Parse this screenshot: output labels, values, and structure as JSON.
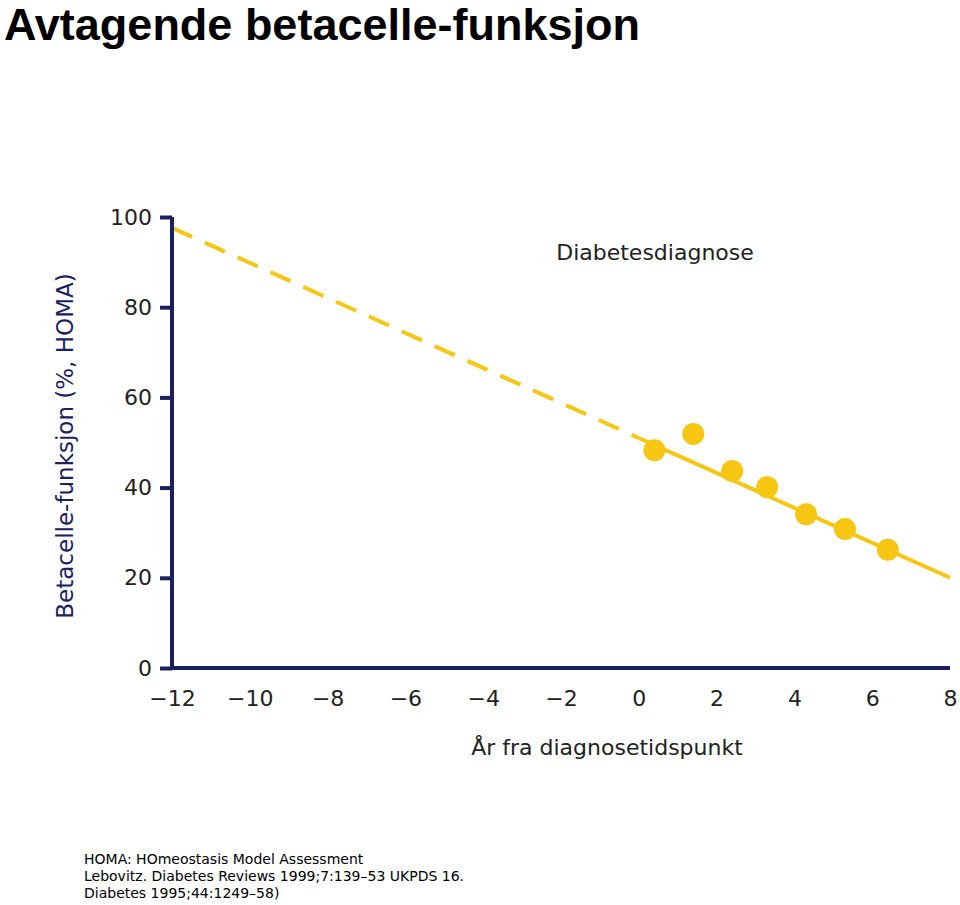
{
  "chart_data": {
    "type": "scatter",
    "title": "Avtagende betacelle-funksjon",
    "x_label": "År fra diagnosetidspunkt",
    "y_label": "Betacelle-funksjon (%, HOMA)",
    "annotations": [
      "Diabetesdiagnose"
    ],
    "notes": [
      "HOMA: HOmeostasis Model Assessment",
      "Lebovitz. Diabetes Reviews 1999;7:139–53 UKPDS 16.",
      "Diabetes 1995;44:1249–58)"
    ],
    "xlim": [
      -12,
      8
    ],
    "ylim": [
      0,
      100
    ],
    "xticks": [
      {
        "value": -12,
        "label": "−12"
      },
      {
        "value": -10,
        "label": "−10"
      },
      {
        "value": -8,
        "label": "−8"
      },
      {
        "value": -6,
        "label": "−6"
      },
      {
        "value": -4,
        "label": "−4"
      },
      {
        "value": -2,
        "label": "−2"
      },
      0,
      2,
      4,
      6,
      8
    ],
    "yticks": [
      0,
      20,
      40,
      60,
      80,
      100
    ],
    "grid": false,
    "series": [
      {
        "type": "scatter",
        "marker": "circle",
        "color": "#f6c612",
        "x": [
          0.4,
          1.4,
          2.4,
          3.3,
          4.3,
          5.3,
          6.4
        ],
        "values": [
          48.3,
          51.9,
          43.7,
          40.1,
          34.1,
          30.8,
          26.2
        ]
      },
      {
        "type": "line",
        "line_style": "dashed",
        "color": "#f6c612",
        "x": [
          -12,
          0
        ],
        "values": [
          97.6,
          51
        ]
      },
      {
        "type": "line",
        "line_style": "solid",
        "color": "#f6c612",
        "x": [
          0,
          8
        ],
        "values": [
          51,
          20
        ]
      }
    ]
  }
}
